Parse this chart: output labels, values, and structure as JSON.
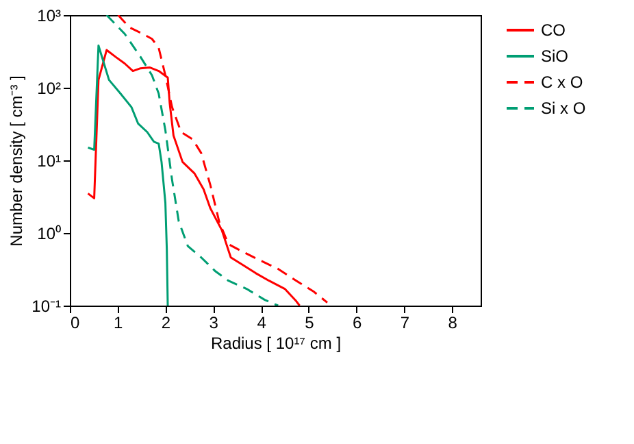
{
  "chart_data": {
    "type": "line",
    "xlabel": "Radius  [ 10¹⁷ cm ]",
    "ylabel": "Number density  [ cm⁻³ ]",
    "xlim": [
      0,
      8.6
    ],
    "xticks": [
      0,
      1,
      2,
      3,
      4,
      5,
      6,
      7,
      8
    ],
    "ylim": [
      0.1,
      1000
    ],
    "yticks": [
      {
        "value": 0.1,
        "label": "10⁻¹"
      },
      {
        "value": 1,
        "label": "10⁰"
      },
      {
        "value": 10,
        "label": "10¹"
      },
      {
        "value": 100,
        "label": "10²"
      },
      {
        "value": 1000,
        "label": "10³"
      }
    ],
    "log": "y",
    "grid": false,
    "legend": "top right",
    "marker": "none",
    "series": [
      {
        "name": "CO",
        "color": "#ff0000",
        "line_style": "solid",
        "x": [
          0.38,
          0.51,
          0.6,
          0.77,
          0.96,
          1.15,
          1.32,
          1.48,
          1.67,
          1.86,
          2.05,
          2.09,
          2.17,
          2.36,
          2.61,
          2.8,
          2.94,
          3.18,
          3.37,
          3.6,
          3.89,
          4.17,
          4.5,
          4.74,
          4.81
        ],
        "values": [
          3.5,
          3.0,
          128,
          330,
          265,
          215,
          170,
          185,
          190,
          170,
          138,
          62,
          22,
          9.5,
          6.6,
          4,
          2.2,
          1.1,
          0.46,
          0.37,
          0.28,
          0.22,
          0.17,
          0.115,
          0.1
        ]
      },
      {
        "name": "SiO",
        "color": "#009e73",
        "line_style": "solid",
        "x": [
          0.38,
          0.51,
          0.6,
          0.82,
          1.06,
          1.29,
          1.43,
          1.62,
          1.76,
          1.86,
          1.92,
          2.0,
          2.03,
          2.05
        ],
        "values": [
          15,
          14,
          380,
          128,
          83,
          54,
          32,
          24.5,
          18,
          17,
          9.5,
          2.6,
          0.6,
          0.1
        ]
      },
      {
        "name": "C x O",
        "color": "#ff0000",
        "line_style": "dashed",
        "x": [
          1.01,
          1.25,
          1.53,
          1.72,
          1.86,
          2.0,
          2.14,
          2.33,
          2.57,
          2.75,
          2.94,
          3.13,
          3.32,
          3.6,
          3.98,
          4.36,
          4.74,
          5.11,
          5.39
        ],
        "values": [
          1000,
          675,
          550,
          470,
          355,
          148,
          54,
          24.5,
          19.5,
          12.6,
          4.6,
          1.4,
          0.7,
          0.56,
          0.42,
          0.32,
          0.22,
          0.155,
          0.11
        ]
      },
      {
        "name": "Si x O",
        "color": "#009e73",
        "line_style": "dashed",
        "x": [
          0.77,
          1.15,
          1.48,
          1.72,
          1.86,
          2.0,
          2.14,
          2.28,
          2.47,
          2.75,
          3.04,
          3.32,
          3.7,
          4.08,
          4.36
        ],
        "values": [
          1000,
          550,
          265,
          148,
          83,
          26,
          5.4,
          1.45,
          0.66,
          0.46,
          0.3,
          0.22,
          0.17,
          0.12,
          0.1
        ]
      }
    ]
  }
}
